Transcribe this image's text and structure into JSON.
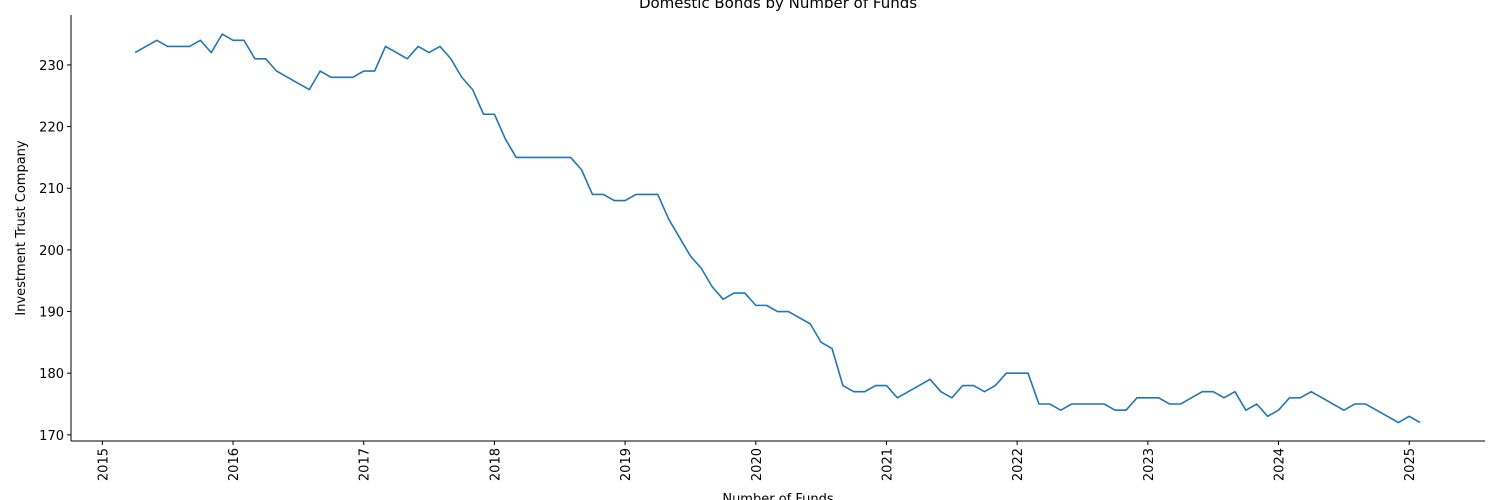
{
  "chart_data": {
    "type": "line",
    "title": "Domestic Bonds by Number of Funds",
    "x_label": "Number of Funds",
    "y_label": "Investment Trust Company",
    "color": "#1f77b4",
    "grid": false,
    "x": [
      "2015-04",
      "2015-05",
      "2015-06",
      "2015-07",
      "2015-08",
      "2015-09",
      "2015-10",
      "2015-11",
      "2015-12",
      "2016-01",
      "2016-02",
      "2016-03",
      "2016-04",
      "2016-05",
      "2016-06",
      "2016-07",
      "2016-08",
      "2016-09",
      "2016-10",
      "2016-11",
      "2016-12",
      "2017-01",
      "2017-02",
      "2017-03",
      "2017-04",
      "2017-05",
      "2017-06",
      "2017-07",
      "2017-08",
      "2017-09",
      "2017-10",
      "2017-11",
      "2017-12",
      "2018-01",
      "2018-02",
      "2018-03",
      "2018-04",
      "2018-05",
      "2018-06",
      "2018-07",
      "2018-08",
      "2018-09",
      "2018-10",
      "2018-11",
      "2018-12",
      "2019-01",
      "2019-02",
      "2019-03",
      "2019-04",
      "2019-05",
      "2019-06",
      "2019-07",
      "2019-08",
      "2019-09",
      "2019-10",
      "2019-11",
      "2019-12",
      "2020-01",
      "2020-02",
      "2020-03",
      "2020-04",
      "2020-05",
      "2020-06",
      "2020-07",
      "2020-08",
      "2020-09",
      "2020-10",
      "2020-11",
      "2020-12",
      "2021-01",
      "2021-02",
      "2021-03",
      "2021-04",
      "2021-05",
      "2021-06",
      "2021-07",
      "2021-08",
      "2021-09",
      "2021-10",
      "2021-11",
      "2021-12",
      "2022-01",
      "2022-02",
      "2022-03",
      "2022-04",
      "2022-05",
      "2022-06",
      "2022-07",
      "2022-08",
      "2022-09",
      "2022-10",
      "2022-11",
      "2022-12",
      "2023-01",
      "2023-02",
      "2023-03",
      "2023-04",
      "2023-05",
      "2023-06",
      "2023-07",
      "2023-08",
      "2023-09",
      "2023-10",
      "2023-11",
      "2023-12",
      "2024-01",
      "2024-02",
      "2024-03",
      "2024-04",
      "2024-05",
      "2024-06",
      "2024-07",
      "2024-08",
      "2024-09",
      "2024-10",
      "2024-11",
      "2024-12",
      "2025-01",
      "2025-02"
    ],
    "values": [
      232,
      233,
      234,
      233,
      233,
      233,
      234,
      232,
      235,
      234,
      234,
      231,
      231,
      229,
      228,
      227,
      226,
      229,
      228,
      228,
      228,
      229,
      229,
      233,
      232,
      231,
      233,
      232,
      233,
      231,
      228,
      226,
      222,
      222,
      218,
      215,
      215,
      215,
      215,
      215,
      215,
      213,
      209,
      209,
      208,
      208,
      209,
      209,
      209,
      205,
      202,
      199,
      197,
      194,
      192,
      193,
      193,
      191,
      191,
      190,
      190,
      189,
      188,
      185,
      184,
      178,
      177,
      177,
      178,
      178,
      176,
      177,
      178,
      179,
      177,
      176,
      178,
      178,
      177,
      178,
      180,
      180,
      180,
      175,
      175,
      174,
      175,
      175,
      175,
      175,
      174,
      174,
      176,
      176,
      176,
      175,
      175,
      176,
      177,
      177,
      176,
      177,
      174,
      175,
      173,
      174,
      176,
      176,
      177,
      176,
      175,
      174,
      175,
      175,
      174,
      173,
      172,
      173,
      172
    ],
    "xlim": [
      2014.76,
      2025.58
    ],
    "xticks": [
      2015,
      2016,
      2017,
      2018,
      2019,
      2020,
      2021,
      2022,
      2023,
      2024,
      2025
    ],
    "ylim": [
      169.0,
      238.1
    ],
    "yticks": [
      170,
      180,
      190,
      200,
      210,
      220,
      230
    ]
  }
}
